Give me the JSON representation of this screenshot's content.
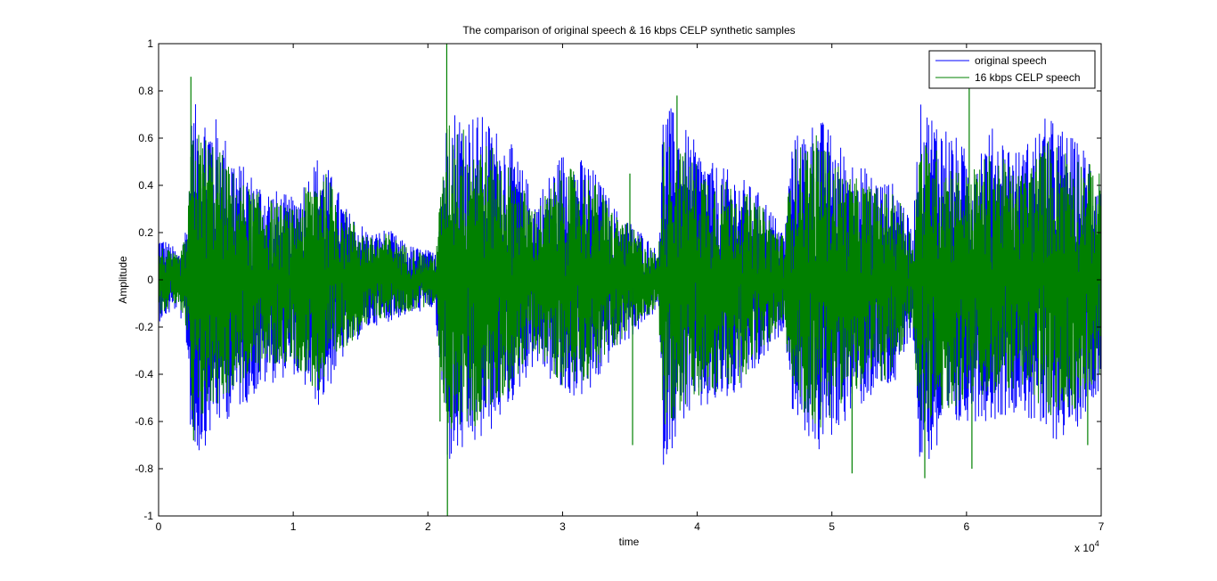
{
  "chart_data": {
    "type": "line",
    "title": "The comparison of original speech & 16 kbps CELP synthetic samples",
    "xlabel": "time",
    "ylabel": "Amplitude",
    "x_exponent_label": "x 10",
    "x_exponent_power": "4",
    "xlim": [
      0,
      70000
    ],
    "ylim": [
      -1,
      1
    ],
    "xticks": [
      0,
      10000,
      20000,
      30000,
      40000,
      50000,
      60000,
      70000
    ],
    "xtick_labels": [
      "0",
      "1",
      "2",
      "3",
      "4",
      "5",
      "6",
      "7"
    ],
    "yticks": [
      -1,
      -0.8,
      -0.6,
      -0.4,
      -0.2,
      0,
      0.2,
      0.4,
      0.6,
      0.8,
      1
    ],
    "ytick_labels": [
      "-1",
      "-0.8",
      "-0.6",
      "-0.4",
      "-0.2",
      "0",
      "0.2",
      "0.4",
      "0.6",
      "0.8",
      "1"
    ],
    "grid": false,
    "legend_position": "top-right",
    "series": [
      {
        "name": "original speech",
        "color": "#0000ff",
        "envelope": {
          "x": [
            0,
            1500,
            2100,
            2500,
            4000,
            6000,
            8000,
            10000,
            12000,
            14000,
            15800,
            17000,
            18500,
            20500,
            21000,
            21500,
            24000,
            26000,
            28000,
            30000,
            32000,
            34000,
            36000,
            37100,
            37500,
            39000,
            41000,
            43000,
            45000,
            46500,
            47000,
            49000,
            51000,
            53000,
            55000,
            56000,
            56500,
            58000,
            60000,
            62000,
            64000,
            66000,
            68000,
            70000
          ],
          "upper": [
            0.2,
            0.12,
            0.25,
            0.75,
            0.72,
            0.5,
            0.4,
            0.35,
            0.55,
            0.3,
            0.2,
            0.22,
            0.15,
            0.12,
            0.45,
            0.75,
            0.7,
            0.6,
            0.35,
            0.55,
            0.5,
            0.3,
            0.2,
            0.12,
            0.78,
            0.65,
            0.5,
            0.45,
            0.35,
            0.2,
            0.6,
            0.7,
            0.55,
            0.45,
            0.4,
            0.2,
            0.75,
            0.7,
            0.55,
            0.65,
            0.55,
            0.7,
            0.6,
            0.5
          ],
          "lower": [
            -0.18,
            -0.12,
            -0.3,
            -0.8,
            -0.65,
            -0.55,
            -0.45,
            -0.4,
            -0.55,
            -0.3,
            -0.2,
            -0.18,
            -0.15,
            -0.12,
            -0.5,
            -0.8,
            -0.7,
            -0.55,
            -0.35,
            -0.5,
            -0.5,
            -0.3,
            -0.2,
            -0.12,
            -0.8,
            -0.6,
            -0.55,
            -0.5,
            -0.35,
            -0.2,
            -0.55,
            -0.75,
            -0.6,
            -0.5,
            -0.45,
            -0.2,
            -0.8,
            -0.75,
            -0.6,
            -0.6,
            -0.55,
            -0.7,
            -0.65,
            -0.45
          ]
        }
      },
      {
        "name": "16 kbps CELP speech",
        "color": "#008000",
        "envelope": {
          "x": [
            0,
            1500,
            2100,
            2500,
            4000,
            6000,
            8000,
            10000,
            12000,
            14000,
            15800,
            17000,
            18500,
            20500,
            21000,
            21500,
            24000,
            26000,
            28000,
            30000,
            32000,
            34000,
            36000,
            37100,
            37500,
            39000,
            41000,
            43000,
            45000,
            46500,
            47000,
            49000,
            51000,
            53000,
            55000,
            56000,
            56500,
            58000,
            60000,
            62000,
            64000,
            66000,
            68000,
            70000
          ],
          "upper": [
            0.15,
            0.1,
            0.2,
            0.65,
            0.6,
            0.42,
            0.35,
            0.3,
            0.5,
            0.28,
            0.18,
            0.2,
            0.14,
            0.1,
            0.4,
            0.7,
            0.6,
            0.5,
            0.3,
            0.48,
            0.45,
            0.28,
            0.18,
            0.1,
            0.6,
            0.55,
            0.45,
            0.4,
            0.3,
            0.18,
            0.55,
            0.62,
            0.45,
            0.4,
            0.35,
            0.18,
            0.6,
            0.55,
            0.45,
            0.55,
            0.45,
            0.6,
            0.55,
            0.45
          ],
          "lower": [
            -0.15,
            -0.1,
            -0.25,
            -0.65,
            -0.55,
            -0.45,
            -0.38,
            -0.35,
            -0.5,
            -0.28,
            -0.18,
            -0.16,
            -0.14,
            -0.1,
            -0.45,
            -0.65,
            -0.6,
            -0.48,
            -0.3,
            -0.45,
            -0.42,
            -0.28,
            -0.18,
            -0.1,
            -0.65,
            -0.55,
            -0.5,
            -0.45,
            -0.3,
            -0.18,
            -0.5,
            -0.65,
            -0.5,
            -0.45,
            -0.4,
            -0.18,
            -0.65,
            -0.6,
            -0.5,
            -0.5,
            -0.45,
            -0.6,
            -0.55,
            -0.4
          ]
        },
        "spikes": [
          {
            "x": 2400,
            "y": 0.86
          },
          {
            "x": 2600,
            "y": -0.68
          },
          {
            "x": 20900,
            "y": -0.6
          },
          {
            "x": 21400,
            "y": 1.0
          },
          {
            "x": 21450,
            "y": -1.0
          },
          {
            "x": 23500,
            "y": -0.62
          },
          {
            "x": 35000,
            "y": 0.45
          },
          {
            "x": 35200,
            "y": -0.7
          },
          {
            "x": 38500,
            "y": 0.78
          },
          {
            "x": 51500,
            "y": -0.82
          },
          {
            "x": 56900,
            "y": -0.84
          },
          {
            "x": 60200,
            "y": 0.85
          },
          {
            "x": 60400,
            "y": -0.8
          },
          {
            "x": 69000,
            "y": -0.7
          }
        ]
      }
    ]
  }
}
